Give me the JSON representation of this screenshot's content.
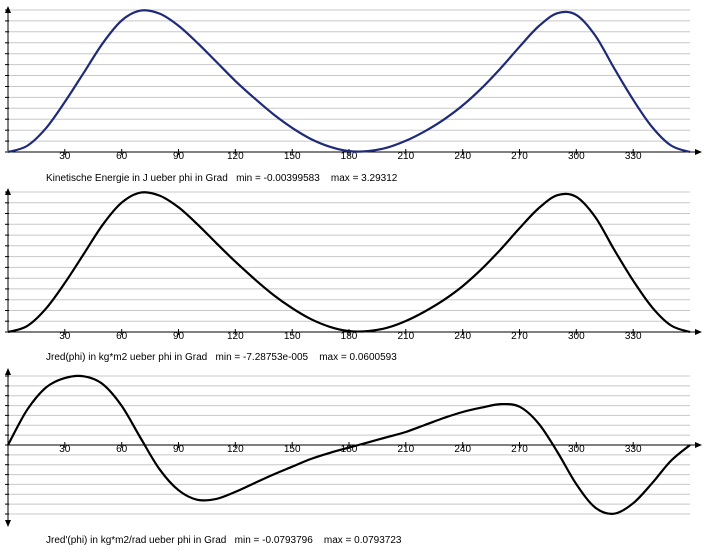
{
  "chart_data": [
    {
      "type": "line",
      "caption": "Kinetische Energie in J ueber phi in Grad   min = -0.00399583    max = 3.29312",
      "xlim": [
        0,
        360
      ],
      "xticks": [
        "30",
        "60",
        "90",
        "120",
        "150",
        "180",
        "210",
        "240",
        "270",
        "300",
        "330"
      ],
      "ylim": [
        0,
        3.29312
      ],
      "grid": true,
      "color": "#1f2a78",
      "x": [
        0,
        10,
        20,
        30,
        40,
        50,
        60,
        70,
        80,
        90,
        100,
        110,
        120,
        130,
        140,
        150,
        160,
        170,
        180,
        190,
        200,
        210,
        220,
        230,
        240,
        250,
        260,
        270,
        280,
        290,
        300,
        310,
        320,
        330,
        340,
        350,
        360
      ],
      "y": [
        0,
        0.14,
        0.55,
        1.16,
        1.84,
        2.52,
        3.05,
        3.28,
        3.21,
        2.93,
        2.53,
        2.09,
        1.65,
        1.25,
        0.88,
        0.56,
        0.3,
        0.12,
        0.02,
        0.02,
        0.1,
        0.26,
        0.48,
        0.75,
        1.08,
        1.48,
        1.94,
        2.44,
        2.91,
        3.22,
        3.18,
        2.7,
        1.94,
        1.21,
        0.58,
        0.15,
        0
      ]
    },
    {
      "type": "line",
      "caption": "Jred(phi) in kg*m2 ueber phi in Grad   min = -7.28753e-005    max = 0.0600593",
      "xlim": [
        0,
        360
      ],
      "xticks": [
        "30",
        "60",
        "90",
        "120",
        "150",
        "180",
        "210",
        "240",
        "270",
        "300",
        "330"
      ],
      "ylim": [
        0,
        0.0600593
      ],
      "grid": true,
      "color": "#000000",
      "x": [
        0,
        10,
        20,
        30,
        40,
        50,
        60,
        70,
        80,
        90,
        100,
        110,
        120,
        130,
        140,
        150,
        160,
        170,
        180,
        190,
        200,
        210,
        220,
        230,
        240,
        250,
        260,
        270,
        280,
        290,
        300,
        310,
        320,
        330,
        340,
        350,
        360
      ],
      "y": [
        0,
        0.0025,
        0.01,
        0.021,
        0.0335,
        0.046,
        0.0555,
        0.0598,
        0.0585,
        0.0535,
        0.0462,
        0.0381,
        0.0302,
        0.0228,
        0.016,
        0.0102,
        0.0055,
        0.0022,
        0.0004,
        0.0004,
        0.0018,
        0.0047,
        0.0088,
        0.0137,
        0.0197,
        0.027,
        0.0354,
        0.0445,
        0.053,
        0.0587,
        0.058,
        0.0493,
        0.0353,
        0.022,
        0.0106,
        0.0028,
        0
      ]
    },
    {
      "type": "line",
      "caption": "Jred'(phi) in kg*m2/rad ueber phi in Grad   min = -0.0793796    max = 0.0793723",
      "xlim": [
        0,
        360
      ],
      "xticks": [
        "30",
        "60",
        "90",
        "120",
        "150",
        "180",
        "210",
        "240",
        "270",
        "300",
        "330"
      ],
      "ylim": [
        -0.0793796,
        0.0793723
      ],
      "grid": true,
      "color": "#000000",
      "x": [
        0,
        10,
        20,
        30,
        40,
        50,
        60,
        70,
        80,
        90,
        100,
        110,
        120,
        130,
        140,
        150,
        160,
        170,
        180,
        190,
        200,
        210,
        220,
        230,
        240,
        250,
        260,
        270,
        280,
        290,
        300,
        310,
        320,
        330,
        340,
        350,
        360
      ],
      "y": [
        0,
        0.04,
        0.066,
        0.077,
        0.079,
        0.07,
        0.045,
        0.008,
        -0.028,
        -0.052,
        -0.063,
        -0.062,
        -0.054,
        -0.044,
        -0.034,
        -0.025,
        -0.016,
        -0.009,
        -0.003,
        0.003,
        0.009,
        0.015,
        0.023,
        0.031,
        0.038,
        0.043,
        0.047,
        0.044,
        0.025,
        -0.008,
        -0.045,
        -0.072,
        -0.079,
        -0.067,
        -0.044,
        -0.018,
        0
      ]
    }
  ]
}
